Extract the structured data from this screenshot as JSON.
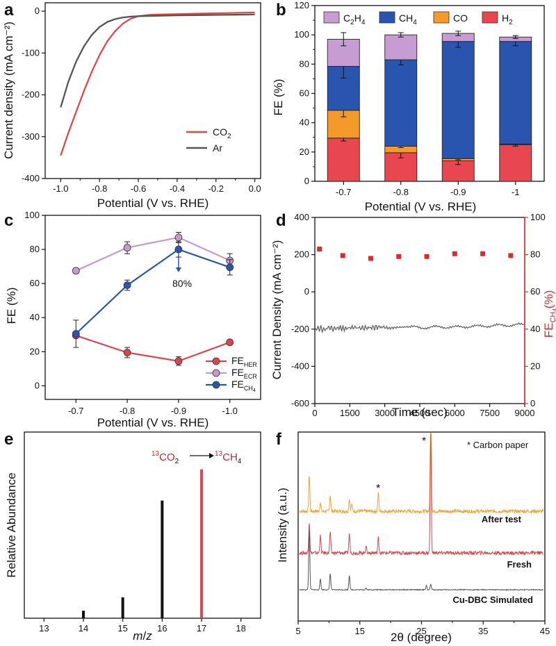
{
  "chart_data": [
    {
      "panel": "a",
      "type": "line",
      "xlabel": "Potential (V vs. RHE)",
      "ylabel": "Current density (mA cm⁻²)",
      "xlim": [
        -1.08,
        0.03
      ],
      "ylim": [
        -400,
        20
      ],
      "xticks": [
        -1.0,
        -0.8,
        -0.6,
        -0.4,
        -0.2,
        0.0
      ],
      "xtick_labels": [
        "-1.0",
        "-0.8",
        "-0.6",
        "-0.4",
        "-0.2",
        "0.0"
      ],
      "yticks": [
        0,
        -100,
        -200,
        -300,
        -400
      ],
      "ytick_labels": [
        "0",
        "-100",
        "-200",
        "-300",
        "-400"
      ],
      "legend_position": "bottom-right",
      "series": [
        {
          "name": "CO2",
          "name_main": "CO",
          "name_sub": "2",
          "color": "#e0474c",
          "x": [
            -1.0,
            -0.96,
            -0.92,
            -0.88,
            -0.84,
            -0.8,
            -0.76,
            -0.72,
            -0.68,
            -0.64,
            -0.6,
            -0.55,
            -0.5,
            -0.4,
            -0.3,
            -0.2,
            -0.1,
            0.0
          ],
          "y": [
            -345,
            -290,
            -240,
            -190,
            -145,
            -105,
            -72,
            -48,
            -30,
            -18,
            -12,
            -9,
            -8,
            -7,
            -6,
            -5,
            -4,
            -3
          ]
        },
        {
          "name": "Ar",
          "name_main": "Ar",
          "name_sub": "",
          "color": "#555555",
          "x": [
            -1.0,
            -0.96,
            -0.92,
            -0.88,
            -0.84,
            -0.8,
            -0.76,
            -0.72,
            -0.68,
            -0.64,
            -0.6,
            -0.5,
            -0.4,
            -0.3,
            -0.2,
            -0.1,
            0.0
          ],
          "y": [
            -230,
            -168,
            -120,
            -84,
            -57,
            -38,
            -26,
            -19,
            -15,
            -13,
            -12,
            -11,
            -10,
            -9.5,
            -9,
            -8.5,
            -8
          ]
        }
      ]
    },
    {
      "panel": "b",
      "type": "bar",
      "xlabel": "Potential (V vs. RHE)",
      "ylabel": "FE (%)",
      "ylim": [
        0,
        120
      ],
      "yticks": [
        0,
        20,
        40,
        60,
        80,
        100,
        120
      ],
      "categories": [
        "-0.7",
        "-0.8",
        "-0.9",
        "-1"
      ],
      "stacked": true,
      "legend_position": "top",
      "series": [
        {
          "name": "H2",
          "name_main": "H",
          "name_sub": "2",
          "color": "#e9474f",
          "values": [
            29.5,
            19.5,
            14,
            25
          ],
          "errors": [
            2,
            3.5,
            2.5,
            1
          ]
        },
        {
          "name": "CO",
          "name_main": "CO",
          "name_sub": "",
          "color": "#f39a2a",
          "values": [
            19,
            4.5,
            1.5,
            0.5
          ],
          "errors": [
            4.5,
            1,
            0.8,
            0.3
          ]
        },
        {
          "name": "CH4",
          "name_main": "CH",
          "name_sub": "4",
          "color": "#2a55ae",
          "values": [
            30,
            59,
            80,
            70
          ],
          "errors": [
            8,
            3.5,
            4,
            3
          ]
        },
        {
          "name": "C2H4",
          "name_main": "C",
          "name_sub": "2",
          "name_main2": "H",
          "name_sub2": "4",
          "color": "#c79cd2",
          "values": [
            18.5,
            17,
            5.5,
            3
          ],
          "errors": [
            4.5,
            1.5,
            1.5,
            1
          ]
        }
      ]
    },
    {
      "panel": "c",
      "type": "line",
      "xlabel": "Potential (V vs. RHE)",
      "ylabel": "FE (%)",
      "xlim": [
        -0.64,
        -1.06
      ],
      "ylim": [
        -8,
        100
      ],
      "x": [
        -0.7,
        -0.8,
        -0.9,
        -1.0
      ],
      "xtick_labels": [
        "-0.7",
        "-0.8",
        "-0.9",
        "-1.0"
      ],
      "yticks": [
        0,
        20,
        40,
        60,
        80,
        100
      ],
      "legend_position": "bottom-right",
      "annotation": "80%",
      "series": [
        {
          "name": "FEHER",
          "name_main": "FE",
          "name_sub": "HER",
          "color": "#d9464c",
          "values": [
            29.5,
            19.5,
            14.5,
            25.5
          ],
          "errors": [
            1.5,
            3,
            2.5,
            1
          ]
        },
        {
          "name": "FEECR",
          "name_main": "FE",
          "name_sub": "ECR",
          "color": "#c99ac9",
          "values": [
            67.5,
            81,
            87,
            73.5
          ],
          "errors": [
            1.5,
            3.5,
            3,
            4
          ]
        },
        {
          "name": "FECH4",
          "name_main": "FE",
          "name_sub": "CH",
          "name_subsub": "4",
          "color": "#2a55ae",
          "values": [
            30.5,
            59,
            80,
            69.5
          ],
          "errors": [
            8,
            3,
            4.5,
            4.5
          ]
        }
      ]
    },
    {
      "panel": "d",
      "type": "scatter",
      "xlabel": "Time (sec)",
      "ylabel": "Current Density (mA cm⁻²)",
      "ylabel_right": "FECH4(%)",
      "ylabel_right_main": "FE",
      "ylabel_right_sub": "CH",
      "ylabel_right_subsub": "4",
      "ylabel_right_tail": "(%)",
      "xlim": [
        0,
        9000
      ],
      "xticks": [
        0,
        1500,
        3000,
        4500,
        6000,
        7500,
        9000
      ],
      "ylim": [
        -600,
        400
      ],
      "yticks": [
        400,
        200,
        0,
        -200,
        -400,
        -600
      ],
      "ylim_right": [
        0,
        100
      ],
      "yticks_right": [
        100,
        80,
        60,
        40,
        20,
        0
      ],
      "current_trace": {
        "color": "#666666",
        "x": [
          0,
          200,
          400,
          600,
          800,
          1000,
          1300,
          1600,
          2000,
          2400,
          2800,
          3200,
          3600,
          4000,
          4500,
          5000,
          5500,
          6000,
          6500,
          7000,
          7500,
          8000,
          8500,
          9000
        ],
        "y": [
          -200,
          -195,
          -205,
          -190,
          -200,
          -192,
          -198,
          -190,
          -195,
          -192,
          -188,
          -195,
          -190,
          -188,
          -192,
          -190,
          -188,
          -190,
          -186,
          -185,
          -182,
          -180,
          -178,
          -176
        ]
      },
      "fe_points": {
        "color": "#d92b2b",
        "x": [
          200,
          1200,
          2400,
          3600,
          4800,
          6000,
          7200,
          8400
        ],
        "y": [
          83,
          79.5,
          78,
          79,
          79,
          80.5,
          80.5,
          79.5
        ]
      }
    },
    {
      "panel": "e",
      "type": "bar",
      "xlabel_main": "m",
      "xlabel_slash": "/",
      "xlabel_tail": "z",
      "ylabel": "Relative Abundance",
      "xlim": [
        12.5,
        18.5
      ],
      "xticks": [
        13,
        14,
        15,
        16,
        17,
        18
      ],
      "ylim": [
        0,
        1.25
      ],
      "sticks": [
        {
          "x": 14,
          "value": 0.05,
          "color": "#111111"
        },
        {
          "x": 15,
          "value": 0.14,
          "color": "#111111"
        },
        {
          "x": 16,
          "value": 0.79,
          "color": "#111111"
        },
        {
          "x": 17,
          "value": 1.0,
          "color": "#e0474c"
        }
      ],
      "annotation": {
        "left_sup": "13",
        "left_main": "CO",
        "left_sub": "2",
        "right_sup": "13",
        "right_main": "CH",
        "right_sub": "4"
      }
    },
    {
      "panel": "f",
      "type": "line",
      "xlabel": "2θ (degree)",
      "ylabel": "Intensity (a.u.)",
      "xlim": [
        5,
        45
      ],
      "xticks": [
        5,
        15,
        25,
        35,
        45
      ],
      "legend_note": "* Carbon paper",
      "series": [
        {
          "name": "After test",
          "color": "#f0a233",
          "peaks": [
            [
              6.8,
              1.0
            ],
            [
              8.6,
              0.25
            ],
            [
              10.2,
              0.45
            ],
            [
              13.3,
              0.35
            ],
            [
              13.7,
              0.2
            ],
            [
              18.0,
              0.5
            ],
            [
              26.5,
              3.2
            ]
          ]
        },
        {
          "name": "Fresh",
          "color": "#d9464c",
          "peaks": [
            [
              6.8,
              0.9
            ],
            [
              8.6,
              0.5
            ],
            [
              10.2,
              0.6
            ],
            [
              13.3,
              0.55
            ],
            [
              16.0,
              0.2
            ],
            [
              18.0,
              0.45
            ],
            [
              26.5,
              3.4
            ]
          ]
        },
        {
          "name": "Cu-DBC Simulated",
          "color": "#555555",
          "peaks": [
            [
              6.8,
              1.7
            ],
            [
              8.6,
              0.3
            ],
            [
              10.2,
              0.45
            ],
            [
              13.3,
              0.4
            ],
            [
              16.0,
              0.05
            ],
            [
              25.8,
              0.12
            ],
            [
              26.5,
              0.15
            ]
          ]
        }
      ]
    }
  ],
  "panel_letters": [
    "a",
    "b",
    "c",
    "d",
    "e",
    "f"
  ],
  "star_mark": "*"
}
